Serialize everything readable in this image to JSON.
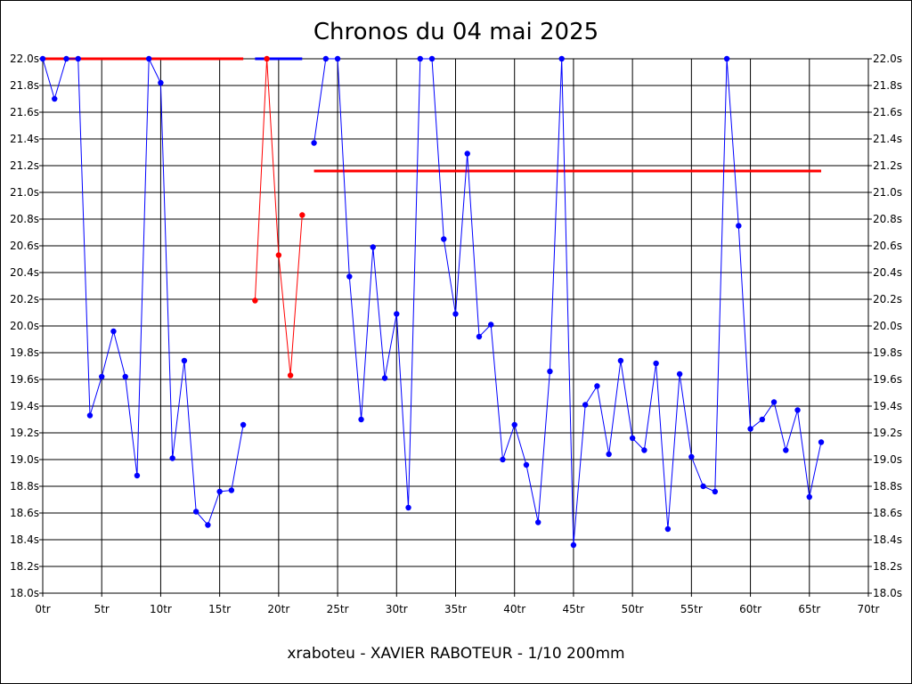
{
  "chart_data": {
    "type": "line",
    "title": "Chronos du 04 mai 2025",
    "subtitle": "xraboteu - XAVIER RABOTEUR - 1/10 200mm",
    "x_unit": "tr",
    "y_unit": "s",
    "xlim": [
      0,
      70
    ],
    "ylim": [
      18.0,
      22.0
    ],
    "x_ticks": [
      0,
      5,
      10,
      15,
      20,
      25,
      30,
      35,
      40,
      45,
      50,
      55,
      60,
      65,
      70
    ],
    "y_ticks": [
      18.0,
      18.2,
      18.4,
      18.6,
      18.8,
      19.0,
      19.2,
      19.4,
      19.6,
      19.8,
      20.0,
      20.2,
      20.4,
      20.6,
      20.8,
      21.0,
      21.2,
      21.4,
      21.6,
      21.8,
      22.0
    ],
    "x_tick_labels": [
      "0tr",
      "5tr",
      "10tr",
      "15tr",
      "20tr",
      "25tr",
      "30tr",
      "35tr",
      "40tr",
      "45tr",
      "50tr",
      "55tr",
      "60tr",
      "65tr",
      "70tr"
    ],
    "y_tick_labels": [
      "18.0s",
      "18.2s",
      "18.4s",
      "18.6s",
      "18.8s",
      "19.0s",
      "19.2s",
      "19.4s",
      "19.6s",
      "19.8s",
      "20.0s",
      "20.2s",
      "20.4s",
      "20.6s",
      "20.8s",
      "21.0s",
      "21.2s",
      "21.4s",
      "21.6s",
      "21.8s",
      "22.0s"
    ],
    "grid": true,
    "series": [
      {
        "color": "#0000ff",
        "points": [
          [
            0,
            22.0
          ],
          [
            1,
            21.7
          ],
          [
            2,
            22.0
          ],
          [
            3,
            22.0
          ],
          [
            4,
            19.33
          ],
          [
            5,
            19.62
          ],
          [
            6,
            19.96
          ],
          [
            7,
            19.62
          ],
          [
            8,
            18.88
          ],
          [
            9,
            22.0
          ],
          [
            10,
            21.82
          ],
          [
            11,
            19.01
          ],
          [
            12,
            19.74
          ],
          [
            13,
            18.61
          ],
          [
            14,
            18.51
          ],
          [
            15,
            18.76
          ],
          [
            16,
            18.77
          ],
          [
            17,
            19.26
          ]
        ]
      },
      {
        "color": "#ff0000",
        "points": [
          [
            18,
            20.19
          ],
          [
            19,
            22.0
          ],
          [
            20,
            20.53
          ],
          [
            21,
            19.63
          ],
          [
            22,
            20.83
          ]
        ]
      },
      {
        "color": "#0000ff",
        "points": [
          [
            23,
            21.37
          ],
          [
            24,
            22.0
          ],
          [
            25,
            22.0
          ],
          [
            26,
            20.37
          ],
          [
            27,
            19.3
          ],
          [
            28,
            20.59
          ],
          [
            29,
            19.61
          ],
          [
            30,
            20.09
          ],
          [
            31,
            18.64
          ],
          [
            32,
            22.0
          ],
          [
            33,
            22.0
          ],
          [
            34,
            20.65
          ],
          [
            35,
            20.09
          ],
          [
            36,
            21.29
          ],
          [
            37,
            19.92
          ],
          [
            38,
            20.01
          ],
          [
            39,
            19.0
          ],
          [
            40,
            19.26
          ],
          [
            41,
            18.96
          ],
          [
            42,
            18.53
          ],
          [
            43,
            19.66
          ],
          [
            44,
            22.0
          ],
          [
            45,
            18.36
          ],
          [
            46,
            19.41
          ],
          [
            47,
            19.55
          ],
          [
            48,
            19.04
          ],
          [
            49,
            19.74
          ],
          [
            50,
            19.16
          ],
          [
            51,
            19.07
          ],
          [
            52,
            19.72
          ],
          [
            53,
            18.48
          ],
          [
            54,
            19.64
          ],
          [
            55,
            19.02
          ],
          [
            56,
            18.8
          ],
          [
            57,
            18.76
          ],
          [
            58,
            22.0
          ],
          [
            59,
            20.75
          ],
          [
            60,
            19.23
          ],
          [
            61,
            19.3
          ],
          [
            62,
            19.43
          ],
          [
            63,
            19.07
          ],
          [
            64,
            19.37
          ],
          [
            65,
            18.72
          ],
          [
            66,
            19.13
          ]
        ]
      }
    ],
    "reference_lines": [
      {
        "color": "#ff0000",
        "y": 22.0,
        "x_from": 0,
        "x_to": 17
      },
      {
        "color": "#0000ff",
        "y": 22.0,
        "x_from": 18,
        "x_to": 22
      },
      {
        "color": "#ff0000",
        "y": 21.16,
        "x_from": 23,
        "x_to": 66
      }
    ]
  }
}
